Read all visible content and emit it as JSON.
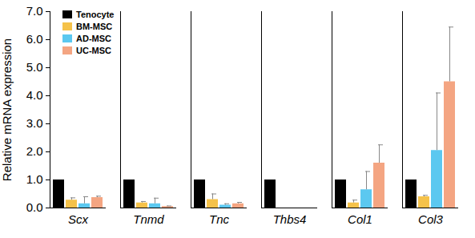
{
  "chart_data": {
    "type": "bar",
    "categories": [
      "Scx",
      "Tnmd",
      "Tnc",
      "Thbs4",
      "Col1",
      "Col3"
    ],
    "series": [
      {
        "name": "Tenocyte",
        "color": "#000000",
        "values": [
          1,
          1,
          1,
          1,
          1,
          1
        ],
        "errors": [
          0,
          0,
          0,
          0,
          0,
          0
        ]
      },
      {
        "name": "BM-MSC",
        "color": "#f5c24a",
        "values": [
          0.28,
          0.18,
          0.3,
          0,
          0.18,
          0.4
        ],
        "errors": [
          0.08,
          0.05,
          0.2,
          0,
          0.1,
          0.05
        ]
      },
      {
        "name": "AD-MSC",
        "color": "#5bc8f0",
        "values": [
          0.15,
          0.15,
          0.1,
          0,
          0.65,
          2.05
        ],
        "errors": [
          0.25,
          0.2,
          0.05,
          0,
          0.65,
          2.05
        ]
      },
      {
        "name": "UC-MSC",
        "color": "#f4a582",
        "values": [
          0.37,
          0.05,
          0.15,
          0,
          1.6,
          4.5
        ],
        "errors": [
          0.05,
          0.02,
          0.05,
          0,
          0.65,
          1.95
        ]
      }
    ],
    "y_label": "Relative mRNA expression",
    "ylim": [
      0,
      7
    ],
    "yticks": [
      0,
      1,
      2,
      3,
      4,
      5,
      6,
      7
    ],
    "legend": "top-left"
  }
}
